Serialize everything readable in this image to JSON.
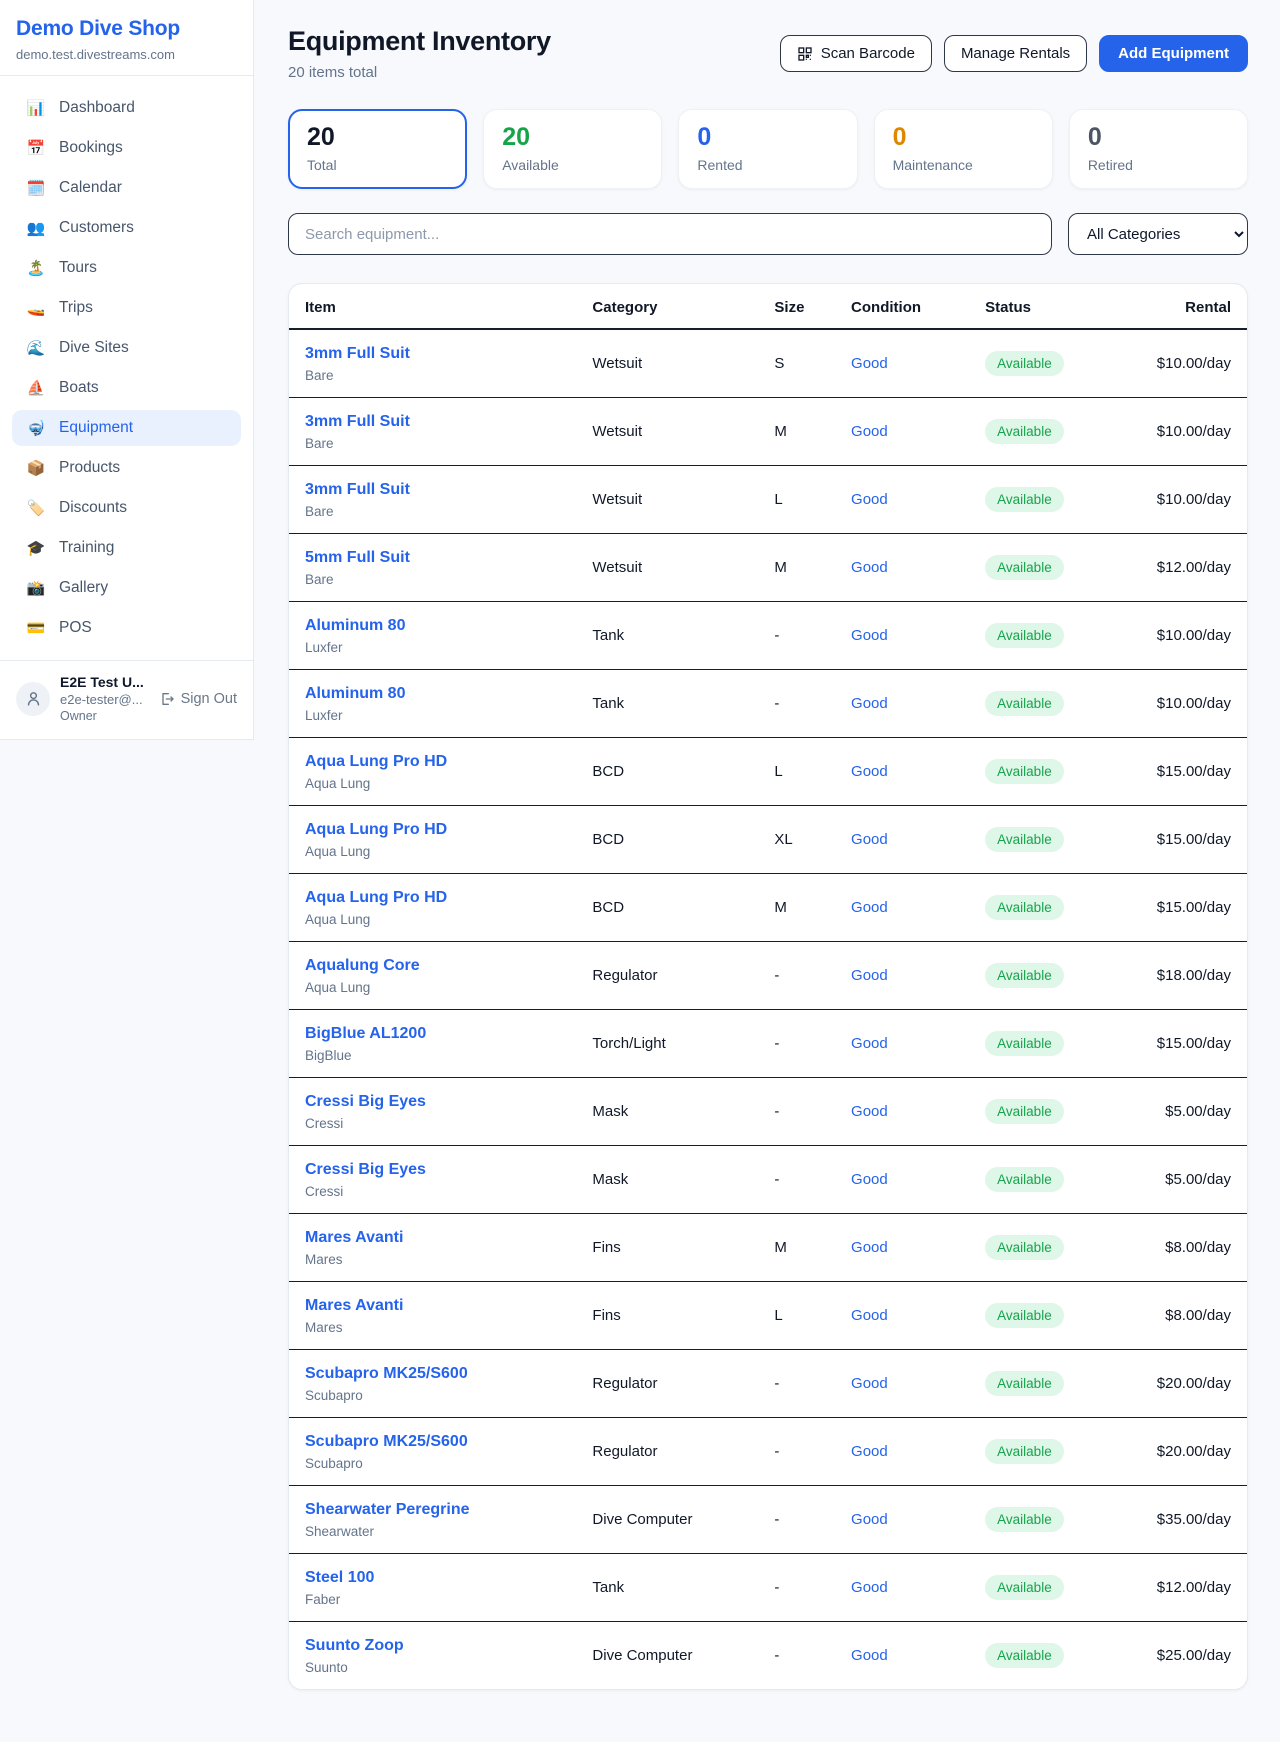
{
  "sidebar": {
    "brand": {
      "title": "Demo Dive Shop",
      "subdomain": "demo.test.divestreams.com"
    },
    "items": [
      {
        "label": "Dashboard",
        "icon": "📊",
        "icon_name": "bar-chart-icon",
        "active": false
      },
      {
        "label": "Bookings",
        "icon": "📅",
        "icon_name": "calendar-icon",
        "active": false
      },
      {
        "label": "Calendar",
        "icon": "🗓️",
        "icon_name": "spiral-calendar-icon",
        "active": false
      },
      {
        "label": "Customers",
        "icon": "👥",
        "icon_name": "people-icon",
        "active": false
      },
      {
        "label": "Tours",
        "icon": "🏝️",
        "icon_name": "island-icon",
        "active": false
      },
      {
        "label": "Trips",
        "icon": "🚤",
        "icon_name": "speedboat-icon",
        "active": false
      },
      {
        "label": "Dive Sites",
        "icon": "🌊",
        "icon_name": "wave-icon",
        "active": false
      },
      {
        "label": "Boats",
        "icon": "⛵",
        "icon_name": "sailboat-icon",
        "active": false
      },
      {
        "label": "Equipment",
        "icon": "🤿",
        "icon_name": "diving-mask-icon",
        "active": true
      },
      {
        "label": "Products",
        "icon": "📦",
        "icon_name": "package-icon",
        "active": false
      },
      {
        "label": "Discounts",
        "icon": "🏷️",
        "icon_name": "tag-icon",
        "active": false
      },
      {
        "label": "Training",
        "icon": "🎓",
        "icon_name": "graduation-cap-icon",
        "active": false
      },
      {
        "label": "Gallery",
        "icon": "📸",
        "icon_name": "camera-icon",
        "active": false
      },
      {
        "label": "POS",
        "icon": "💳",
        "icon_name": "credit-card-icon",
        "active": false
      }
    ],
    "user": {
      "name": "E2E Test U...",
      "email": "e2e-tester@...",
      "role": "Owner",
      "sign_out_label": "Sign Out"
    }
  },
  "header": {
    "title": "Equipment Inventory",
    "subtitle": "20 items total",
    "scan_barcode_label": "Scan Barcode",
    "manage_rentals_label": "Manage Rentals",
    "add_equipment_label": "Add Equipment"
  },
  "stats": [
    {
      "value": "20",
      "label": "Total",
      "color": "#101828",
      "active": true
    },
    {
      "value": "20",
      "label": "Available",
      "color": "#16a34a",
      "active": false
    },
    {
      "value": "0",
      "label": "Rented",
      "color": "#2563eb",
      "active": false
    },
    {
      "value": "0",
      "label": "Maintenance",
      "color": "#e08700",
      "active": false
    },
    {
      "value": "0",
      "label": "Retired",
      "color": "#4b5563",
      "active": false
    }
  ],
  "filters": {
    "search_placeholder": "Search equipment...",
    "category_selected": "All Categories"
  },
  "table": {
    "columns": [
      "Item",
      "Category",
      "Size",
      "Condition",
      "Status",
      "Rental"
    ],
    "rows": [
      {
        "name": "3mm Full Suit",
        "brand": "Bare",
        "category": "Wetsuit",
        "size": "S",
        "condition": "Good",
        "status": "Available",
        "rental": "$10.00/day"
      },
      {
        "name": "3mm Full Suit",
        "brand": "Bare",
        "category": "Wetsuit",
        "size": "M",
        "condition": "Good",
        "status": "Available",
        "rental": "$10.00/day"
      },
      {
        "name": "3mm Full Suit",
        "brand": "Bare",
        "category": "Wetsuit",
        "size": "L",
        "condition": "Good",
        "status": "Available",
        "rental": "$10.00/day"
      },
      {
        "name": "5mm Full Suit",
        "brand": "Bare",
        "category": "Wetsuit",
        "size": "M",
        "condition": "Good",
        "status": "Available",
        "rental": "$12.00/day"
      },
      {
        "name": "Aluminum 80",
        "brand": "Luxfer",
        "category": "Tank",
        "size": "-",
        "condition": "Good",
        "status": "Available",
        "rental": "$10.00/day"
      },
      {
        "name": "Aluminum 80",
        "brand": "Luxfer",
        "category": "Tank",
        "size": "-",
        "condition": "Good",
        "status": "Available",
        "rental": "$10.00/day"
      },
      {
        "name": "Aqua Lung Pro HD",
        "brand": "Aqua Lung",
        "category": "BCD",
        "size": "L",
        "condition": "Good",
        "status": "Available",
        "rental": "$15.00/day"
      },
      {
        "name": "Aqua Lung Pro HD",
        "brand": "Aqua Lung",
        "category": "BCD",
        "size": "XL",
        "condition": "Good",
        "status": "Available",
        "rental": "$15.00/day"
      },
      {
        "name": "Aqua Lung Pro HD",
        "brand": "Aqua Lung",
        "category": "BCD",
        "size": "M",
        "condition": "Good",
        "status": "Available",
        "rental": "$15.00/day"
      },
      {
        "name": "Aqualung Core",
        "brand": "Aqua Lung",
        "category": "Regulator",
        "size": "-",
        "condition": "Good",
        "status": "Available",
        "rental": "$18.00/day"
      },
      {
        "name": "BigBlue AL1200",
        "brand": "BigBlue",
        "category": "Torch/Light",
        "size": "-",
        "condition": "Good",
        "status": "Available",
        "rental": "$15.00/day"
      },
      {
        "name": "Cressi Big Eyes",
        "brand": "Cressi",
        "category": "Mask",
        "size": "-",
        "condition": "Good",
        "status": "Available",
        "rental": "$5.00/day"
      },
      {
        "name": "Cressi Big Eyes",
        "brand": "Cressi",
        "category": "Mask",
        "size": "-",
        "condition": "Good",
        "status": "Available",
        "rental": "$5.00/day"
      },
      {
        "name": "Mares Avanti",
        "brand": "Mares",
        "category": "Fins",
        "size": "M",
        "condition": "Good",
        "status": "Available",
        "rental": "$8.00/day"
      },
      {
        "name": "Mares Avanti",
        "brand": "Mares",
        "category": "Fins",
        "size": "L",
        "condition": "Good",
        "status": "Available",
        "rental": "$8.00/day"
      },
      {
        "name": "Scubapro MK25/S600",
        "brand": "Scubapro",
        "category": "Regulator",
        "size": "-",
        "condition": "Good",
        "status": "Available",
        "rental": "$20.00/day"
      },
      {
        "name": "Scubapro MK25/S600",
        "brand": "Scubapro",
        "category": "Regulator",
        "size": "-",
        "condition": "Good",
        "status": "Available",
        "rental": "$20.00/day"
      },
      {
        "name": "Shearwater Peregrine",
        "brand": "Shearwater",
        "category": "Dive Computer",
        "size": "-",
        "condition": "Good",
        "status": "Available",
        "rental": "$35.00/day"
      },
      {
        "name": "Steel 100",
        "brand": "Faber",
        "category": "Tank",
        "size": "-",
        "condition": "Good",
        "status": "Available",
        "rental": "$12.00/day"
      },
      {
        "name": "Suunto Zoop",
        "brand": "Suunto",
        "category": "Dive Computer",
        "size": "-",
        "condition": "Good",
        "status": "Available",
        "rental": "$25.00/day"
      }
    ]
  },
  "colors": {
    "accent": "#2563eb",
    "available_green": "#16a34a",
    "badge_bg": "#def7e9",
    "maintenance_orange": "#e08700",
    "muted_text": "#64748b",
    "dark_line": "#14202e",
    "page_bg": "#f7f9fc"
  }
}
